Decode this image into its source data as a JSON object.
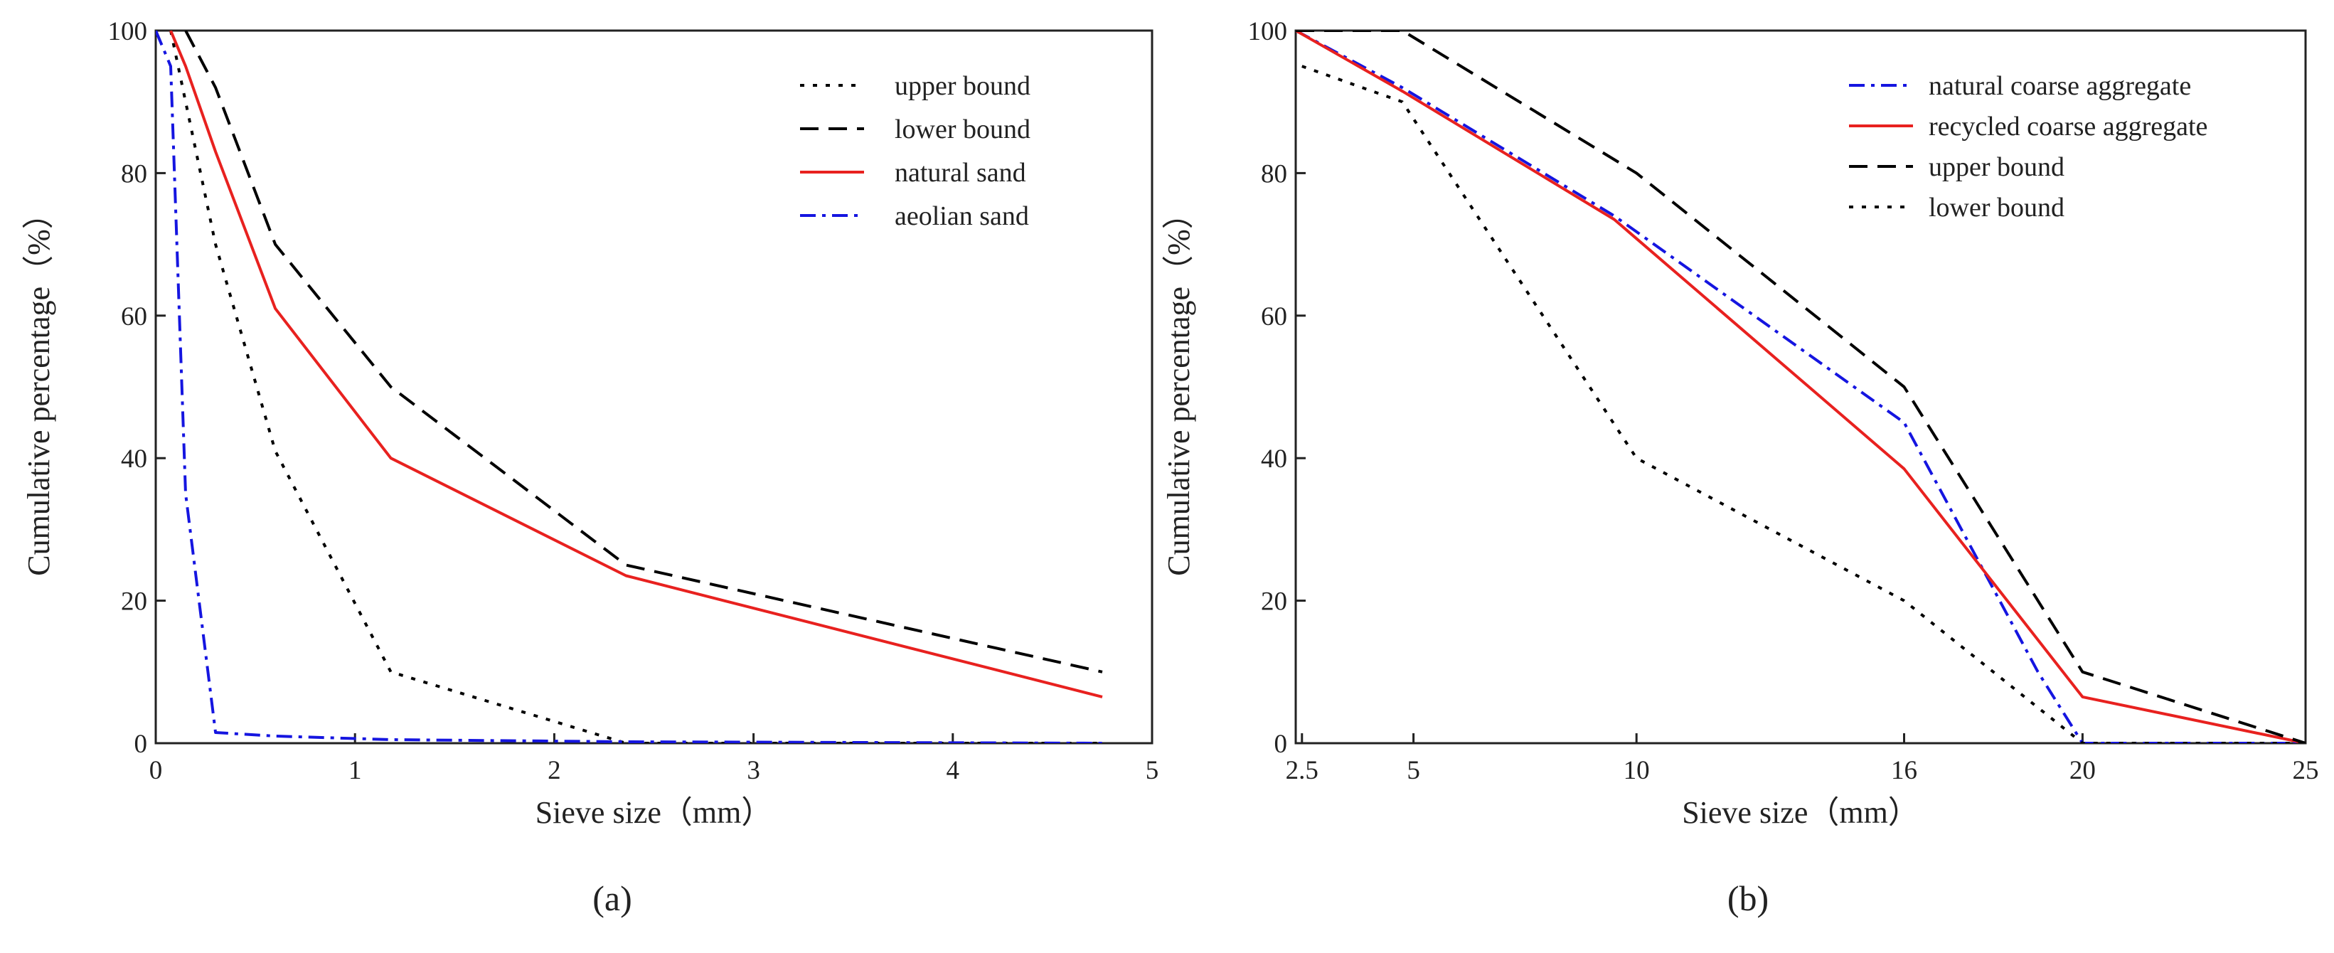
{
  "chart_data": [
    {
      "type": "line",
      "panel_label": "(a)",
      "xlabel": "Sieve size（mm）",
      "ylabel": "Cumulative percentage（%）",
      "xlim": [
        0,
        5
      ],
      "ylim": [
        0,
        100
      ],
      "xticks": [
        0,
        1,
        2,
        3,
        4,
        5
      ],
      "yticks": [
        0,
        20,
        40,
        60,
        80,
        100
      ],
      "grid": false,
      "legend_position": "top-right",
      "series": [
        {
          "name": "upper bound",
          "style": "dotted",
          "color": "#000000",
          "x": [
            0.075,
            0.15,
            0.3,
            0.6,
            1.18,
            2.36,
            4.75
          ],
          "y": [
            100,
            90,
            70,
            41,
            10,
            0,
            0
          ]
        },
        {
          "name": "lower bound",
          "style": "dashed",
          "color": "#000000",
          "x": [
            0.15,
            0.3,
            0.6,
            1.18,
            2.36,
            4.75
          ],
          "y": [
            100,
            92,
            70,
            50,
            25,
            10
          ]
        },
        {
          "name": "natural sand",
          "style": "solid",
          "color": "#e8211f",
          "x": [
            0.075,
            0.15,
            0.3,
            0.6,
            1.18,
            2.36,
            4.75
          ],
          "y": [
            100,
            95,
            83,
            61,
            40,
            23.5,
            6.5
          ]
        },
        {
          "name": "aeolian sand",
          "style": "dashdot",
          "color": "#1515e0",
          "x": [
            0,
            0.075,
            0.15,
            0.3,
            0.6,
            1.18,
            2.36,
            4.75
          ],
          "y": [
            100,
            95,
            35,
            1.5,
            1,
            0.5,
            0.2,
            0
          ]
        }
      ]
    },
    {
      "type": "line",
      "panel_label": "(b)",
      "xlabel": "Sieve size（mm）",
      "ylabel": "Cumulative percentage（%）",
      "xlim": [
        2.36,
        25
      ],
      "ylim": [
        0,
        100
      ],
      "xticks": [
        2.5,
        5,
        10,
        16,
        20,
        25
      ],
      "xtick_labels": [
        "2.5",
        "5",
        "10",
        "16",
        "20",
        "25"
      ],
      "yticks": [
        0,
        20,
        40,
        60,
        80,
        100
      ],
      "grid": false,
      "legend_position": "top-right",
      "series": [
        {
          "name": "natural coarse aggregate",
          "style": "dashdot",
          "color": "#1515e0",
          "x": [
            2.36,
            4.75,
            9.5,
            16,
            19,
            20,
            25
          ],
          "y": [
            100,
            92,
            74,
            45,
            10,
            0,
            0
          ]
        },
        {
          "name": "recycled coarse aggregate",
          "style": "solid",
          "color": "#e8211f",
          "x": [
            2.36,
            4.75,
            9.5,
            16,
            20,
            25
          ],
          "y": [
            100,
            91.5,
            73.5,
            38.5,
            6.5,
            0
          ]
        },
        {
          "name": "upper bound",
          "style": "dashed",
          "color": "#000000",
          "x": [
            2.36,
            4.75,
            10,
            16,
            20,
            25
          ],
          "y": [
            100,
            100,
            80,
            50,
            10,
            0
          ]
        },
        {
          "name": "lower bound",
          "style": "dotted",
          "color": "#000000",
          "x": [
            2.5,
            4.75,
            10,
            16,
            20,
            25
          ],
          "y": [
            95,
            90,
            40,
            20,
            0,
            0
          ]
        }
      ]
    }
  ]
}
